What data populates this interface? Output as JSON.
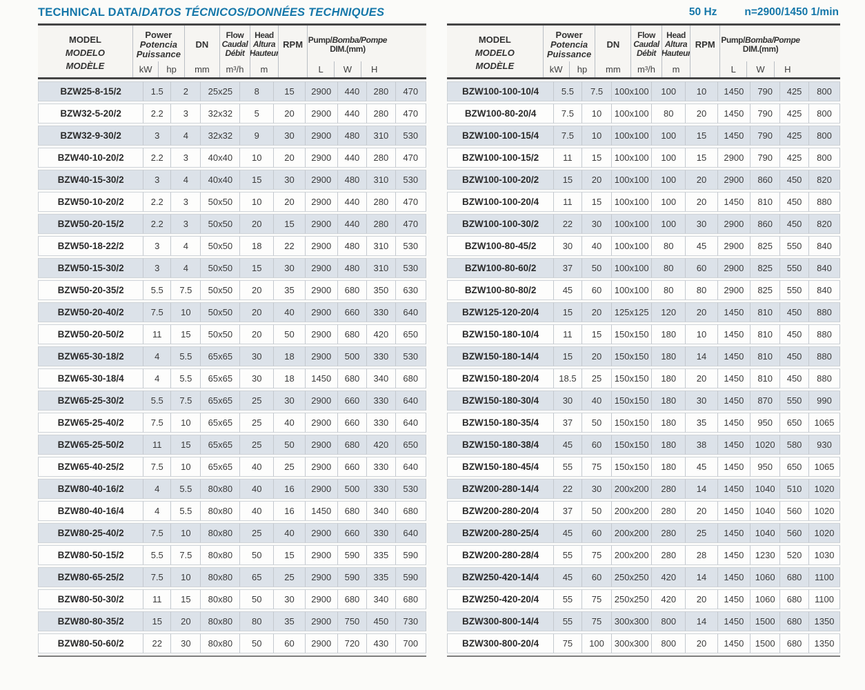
{
  "page": {
    "title_main": "TECHNICAL DATA/",
    "title_i18n": "DATOS TÉCNICOS/DONNÉES TECHNIQUES",
    "frequency": "50 Hz",
    "speed": "n=2900/1450 1/min"
  },
  "colors": {
    "accent_blue": "#1577a9",
    "shaded_row": "#dce2e9",
    "header_bg": "#f6f5f2",
    "dark_border": "#454545"
  },
  "header": {
    "model_lines": [
      "MODEL",
      "MODELO",
      "MODÈLE"
    ],
    "power_lines": [
      "Power",
      "Potencia",
      "Puissance"
    ],
    "dn_label": "DN",
    "flow_lines": [
      "Flow",
      "Caudal",
      "Débit"
    ],
    "head_lines": [
      "Head",
      "Altura",
      "Hauteur"
    ],
    "rpm_label": "RPM",
    "pump_line_en": "Pump/",
    "pump_line_rest": "Bomba/Pompe",
    "pump_line2": "DIM.(mm)",
    "units": {
      "kw": "kW",
      "hp": "hp",
      "dn": "mm",
      "flow": "m³/h",
      "head": "m",
      "l": "L",
      "w": "W",
      "h": "H"
    }
  },
  "tables": {
    "left": {
      "rows": [
        [
          "BZW25-8-15/2",
          "1.5",
          "2",
          "25x25",
          "8",
          "15",
          "2900",
          "440",
          "280",
          "470"
        ],
        [
          "BZW32-5-20/2",
          "2.2",
          "3",
          "32x32",
          "5",
          "20",
          "2900",
          "440",
          "280",
          "470"
        ],
        [
          "BZW32-9-30/2",
          "3",
          "4",
          "32x32",
          "9",
          "30",
          "2900",
          "480",
          "310",
          "530"
        ],
        [
          "BZW40-10-20/2",
          "2.2",
          "3",
          "40x40",
          "10",
          "20",
          "2900",
          "440",
          "280",
          "470"
        ],
        [
          "BZW40-15-30/2",
          "3",
          "4",
          "40x40",
          "15",
          "30",
          "2900",
          "480",
          "310",
          "530"
        ],
        [
          "BZW50-10-20/2",
          "2.2",
          "3",
          "50x50",
          "10",
          "20",
          "2900",
          "440",
          "280",
          "470"
        ],
        [
          "BZW50-20-15/2",
          "2.2",
          "3",
          "50x50",
          "20",
          "15",
          "2900",
          "440",
          "280",
          "470"
        ],
        [
          "BZW50-18-22/2",
          "3",
          "4",
          "50x50",
          "18",
          "22",
          "2900",
          "480",
          "310",
          "530"
        ],
        [
          "BZW50-15-30/2",
          "3",
          "4",
          "50x50",
          "15",
          "30",
          "2900",
          "480",
          "310",
          "530"
        ],
        [
          "BZW50-20-35/2",
          "5.5",
          "7.5",
          "50x50",
          "20",
          "35",
          "2900",
          "680",
          "350",
          "630"
        ],
        [
          "BZW50-20-40/2",
          "7.5",
          "10",
          "50x50",
          "20",
          "40",
          "2900",
          "660",
          "330",
          "640"
        ],
        [
          "BZW50-20-50/2",
          "11",
          "15",
          "50x50",
          "20",
          "50",
          "2900",
          "680",
          "420",
          "650"
        ],
        [
          "BZW65-30-18/2",
          "4",
          "5.5",
          "65x65",
          "30",
          "18",
          "2900",
          "500",
          "330",
          "530"
        ],
        [
          "BZW65-30-18/4",
          "4",
          "5.5",
          "65x65",
          "30",
          "18",
          "1450",
          "680",
          "340",
          "680"
        ],
        [
          "BZW65-25-30/2",
          "5.5",
          "7.5",
          "65x65",
          "25",
          "30",
          "2900",
          "660",
          "330",
          "640"
        ],
        [
          "BZW65-25-40/2",
          "7.5",
          "10",
          "65x65",
          "25",
          "40",
          "2900",
          "660",
          "330",
          "640"
        ],
        [
          "BZW65-25-50/2",
          "11",
          "15",
          "65x65",
          "25",
          "50",
          "2900",
          "680",
          "420",
          "650"
        ],
        [
          "BZW65-40-25/2",
          "7.5",
          "10",
          "65x65",
          "40",
          "25",
          "2900",
          "660",
          "330",
          "640"
        ],
        [
          "BZW80-40-16/2",
          "4",
          "5.5",
          "80x80",
          "40",
          "16",
          "2900",
          "500",
          "330",
          "530"
        ],
        [
          "BZW80-40-16/4",
          "4",
          "5.5",
          "80x80",
          "40",
          "16",
          "1450",
          "680",
          "340",
          "680"
        ],
        [
          "BZW80-25-40/2",
          "7.5",
          "10",
          "80x80",
          "25",
          "40",
          "2900",
          "660",
          "330",
          "640"
        ],
        [
          "BZW80-50-15/2",
          "5.5",
          "7.5",
          "80x80",
          "50",
          "15",
          "2900",
          "590",
          "335",
          "590"
        ],
        [
          "BZW80-65-25/2",
          "7.5",
          "10",
          "80x80",
          "65",
          "25",
          "2900",
          "590",
          "335",
          "590"
        ],
        [
          "BZW80-50-30/2",
          "11",
          "15",
          "80x80",
          "50",
          "30",
          "2900",
          "680",
          "340",
          "680"
        ],
        [
          "BZW80-80-35/2",
          "15",
          "20",
          "80x80",
          "80",
          "35",
          "2900",
          "750",
          "450",
          "730"
        ],
        [
          "BZW80-50-60/2",
          "22",
          "30",
          "80x80",
          "50",
          "60",
          "2900",
          "720",
          "430",
          "700"
        ]
      ]
    },
    "right": {
      "rows": [
        [
          "BZW100-100-10/4",
          "5.5",
          "7.5",
          "100x100",
          "100",
          "10",
          "1450",
          "790",
          "425",
          "800"
        ],
        [
          "BZW100-80-20/4",
          "7.5",
          "10",
          "100x100",
          "80",
          "20",
          "1450",
          "790",
          "425",
          "800"
        ],
        [
          "BZW100-100-15/4",
          "7.5",
          "10",
          "100x100",
          "100",
          "15",
          "1450",
          "790",
          "425",
          "800"
        ],
        [
          "BZW100-100-15/2",
          "11",
          "15",
          "100x100",
          "100",
          "15",
          "2900",
          "790",
          "425",
          "800"
        ],
        [
          "BZW100-100-20/2",
          "15",
          "20",
          "100x100",
          "100",
          "20",
          "2900",
          "860",
          "450",
          "820"
        ],
        [
          "BZW100-100-20/4",
          "11",
          "15",
          "100x100",
          "100",
          "20",
          "1450",
          "810",
          "450",
          "880"
        ],
        [
          "BZW100-100-30/2",
          "22",
          "30",
          "100x100",
          "100",
          "30",
          "2900",
          "860",
          "450",
          "820"
        ],
        [
          "BZW100-80-45/2",
          "30",
          "40",
          "100x100",
          "80",
          "45",
          "2900",
          "825",
          "550",
          "840"
        ],
        [
          "BZW100-80-60/2",
          "37",
          "50",
          "100x100",
          "80",
          "60",
          "2900",
          "825",
          "550",
          "840"
        ],
        [
          "BZW100-80-80/2",
          "45",
          "60",
          "100x100",
          "80",
          "80",
          "2900",
          "825",
          "550",
          "840"
        ],
        [
          "BZW125-120-20/4",
          "15",
          "20",
          "125x125",
          "120",
          "20",
          "1450",
          "810",
          "450",
          "880"
        ],
        [
          "BZW150-180-10/4",
          "11",
          "15",
          "150x150",
          "180",
          "10",
          "1450",
          "810",
          "450",
          "880"
        ],
        [
          "BZW150-180-14/4",
          "15",
          "20",
          "150x150",
          "180",
          "14",
          "1450",
          "810",
          "450",
          "880"
        ],
        [
          "BZW150-180-20/4",
          "18.5",
          "25",
          "150x150",
          "180",
          "20",
          "1450",
          "810",
          "450",
          "880"
        ],
        [
          "BZW150-180-30/4",
          "30",
          "40",
          "150x150",
          "180",
          "30",
          "1450",
          "870",
          "550",
          "990"
        ],
        [
          "BZW150-180-35/4",
          "37",
          "50",
          "150x150",
          "180",
          "35",
          "1450",
          "950",
          "650",
          "1065"
        ],
        [
          "BZW150-180-38/4",
          "45",
          "60",
          "150x150",
          "180",
          "38",
          "1450",
          "1020",
          "580",
          "930"
        ],
        [
          "BZW150-180-45/4",
          "55",
          "75",
          "150x150",
          "180",
          "45",
          "1450",
          "950",
          "650",
          "1065"
        ],
        [
          "BZW200-280-14/4",
          "22",
          "30",
          "200x200",
          "280",
          "14",
          "1450",
          "1040",
          "510",
          "1020"
        ],
        [
          "BZW200-280-20/4",
          "37",
          "50",
          "200x200",
          "280",
          "20",
          "1450",
          "1040",
          "560",
          "1020"
        ],
        [
          "BZW200-280-25/4",
          "45",
          "60",
          "200x200",
          "280",
          "25",
          "1450",
          "1040",
          "560",
          "1020"
        ],
        [
          "BZW200-280-28/4",
          "55",
          "75",
          "200x200",
          "280",
          "28",
          "1450",
          "1230",
          "520",
          "1030"
        ],
        [
          "BZW250-420-14/4",
          "45",
          "60",
          "250x250",
          "420",
          "14",
          "1450",
          "1060",
          "680",
          "1100"
        ],
        [
          "BZW250-420-20/4",
          "55",
          "75",
          "250x250",
          "420",
          "20",
          "1450",
          "1060",
          "680",
          "1100"
        ],
        [
          "BZW300-800-14/4",
          "55",
          "75",
          "300x300",
          "800",
          "14",
          "1450",
          "1500",
          "680",
          "1350"
        ],
        [
          "BZW300-800-20/4",
          "75",
          "100",
          "300x300",
          "800",
          "20",
          "1450",
          "1500",
          "680",
          "1350"
        ]
      ]
    }
  }
}
